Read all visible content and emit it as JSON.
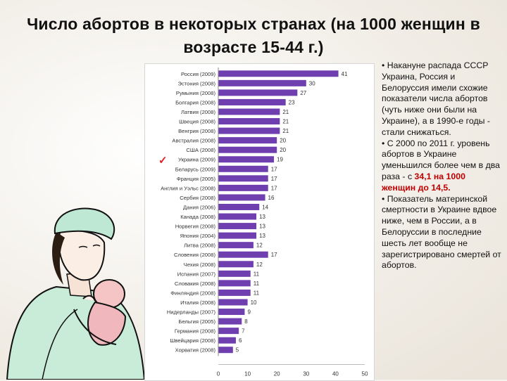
{
  "title": "Число абортов в некоторых странах (на 1000 женщин в возрасте 15-44 г.)",
  "side_text": {
    "p1": "• Накануне распада СССР Украина, Россия и Белоруссия имели схожие показатели числа абортов (чуть ниже они были на Украине), а в 1990-е годы - стали снижаться.",
    "p2_start": "• С 2000 по 2011 г. уровень абортов в Украине уменьшился более чем в два раза - с ",
    "p2_highlight": "34,1 на 1000 женщин до 14,5.",
    "p3": "• Показатель материнской смертности в Украине вдвое ниже, чем в России, а в Белоруссии в последние шесть лет вообще не зарегистрировано смертей от абортов."
  },
  "colors": {
    "bar": "#6f3fb0",
    "highlight": "#c00000",
    "check": "#e02020"
  },
  "icons": {
    "check": "✓"
  },
  "chart_data": {
    "type": "bar",
    "orientation": "horizontal",
    "categories": [
      "Россия (2009)",
      "Эстония (2008)",
      "Румыния (2008)",
      "Болгария (2008)",
      "Латвия (2008)",
      "Швеция (2008)",
      "Венгрия (2008)",
      "Австралия (2008)",
      "США (2008)",
      "Украина (2009)",
      "Беларусь (2009)",
      "Франция (2005)",
      "Англия и Уэльс (2008)",
      "Сербия (2008)",
      "Дания (2006)",
      "Канада (2008)",
      "Норвегия (2008)",
      "Япония (2004)",
      "Литва (2008)",
      "Словения (2008)",
      "Чехия (2008)",
      "Испания (2007)",
      "Словакия (2008)",
      "Финляндия (2008)",
      "Италия (2008)",
      "Нидерланды (2007)",
      "Бельгия (2005)",
      "Германия (2008)",
      "Швейцария (2008)",
      "Хорватия (2008)"
    ],
    "values": [
      41,
      30,
      27,
      23,
      21,
      21,
      21,
      20,
      20,
      19,
      17,
      17,
      17,
      16,
      14,
      13,
      13,
      13,
      12,
      17,
      12,
      11,
      11,
      11,
      10,
      9,
      8,
      7,
      6,
      5
    ],
    "x_ticks": [
      0,
      10,
      20,
      30,
      40,
      50
    ],
    "xlim": [
      0,
      50
    ],
    "grid": false,
    "highlighted_category": "Украина (2009)"
  }
}
